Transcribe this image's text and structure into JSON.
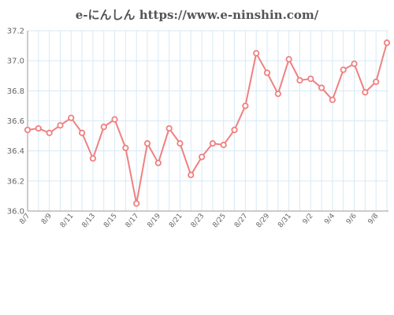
{
  "chart_data": {
    "type": "line",
    "title": "e-にんしん https://www.e-ninshin.com/",
    "xlabel": "",
    "ylabel": "",
    "ylim": [
      36.0,
      37.2
    ],
    "y_ticks": [
      36.0,
      36.2,
      36.4,
      36.6,
      36.8,
      37.0,
      37.2
    ],
    "y_tick_labels": [
      "36.0",
      "36.2",
      "36.4",
      "36.6",
      "36.8",
      "37.0",
      "37.2"
    ],
    "x": [
      "8/7",
      "8/8",
      "8/9",
      "8/10",
      "8/11",
      "8/12",
      "8/13",
      "8/14",
      "8/15",
      "8/16",
      "8/17",
      "8/18",
      "8/19",
      "8/20",
      "8/21",
      "8/22",
      "8/23",
      "8/24",
      "8/25",
      "8/26",
      "8/27",
      "8/28",
      "8/29",
      "8/30",
      "8/31",
      "9/1",
      "9/2",
      "9/3",
      "9/4",
      "9/5",
      "9/6",
      "9/7",
      "9/8",
      "9/9"
    ],
    "x_tick_labels": [
      "8/7",
      "",
      "8/9",
      "",
      "8/11",
      "",
      "8/13",
      "",
      "8/15",
      "",
      "8/17",
      "",
      "8/19",
      "",
      "8/21",
      "",
      "8/23",
      "",
      "8/25",
      "",
      "8/27",
      "",
      "8/29",
      "",
      "8/31",
      "",
      "9/2",
      "",
      "9/4",
      "",
      "9/6",
      "",
      "9/8",
      ""
    ],
    "series": [
      {
        "values": [
          36.54,
          36.55,
          36.52,
          36.57,
          36.62,
          36.52,
          36.35,
          36.56,
          36.61,
          36.42,
          36.05,
          36.45,
          36.32,
          36.55,
          36.45,
          36.24,
          36.36,
          36.45,
          36.44,
          36.54,
          36.7,
          37.05,
          36.92,
          36.78,
          37.01,
          36.87,
          36.88,
          36.82,
          36.74,
          36.94,
          36.98,
          36.79,
          36.86,
          37.12
        ]
      }
    ],
    "grid": true,
    "line_color": "#f08080",
    "marker_fill": "#ffffff",
    "grid_color": "#d6eaf5"
  }
}
